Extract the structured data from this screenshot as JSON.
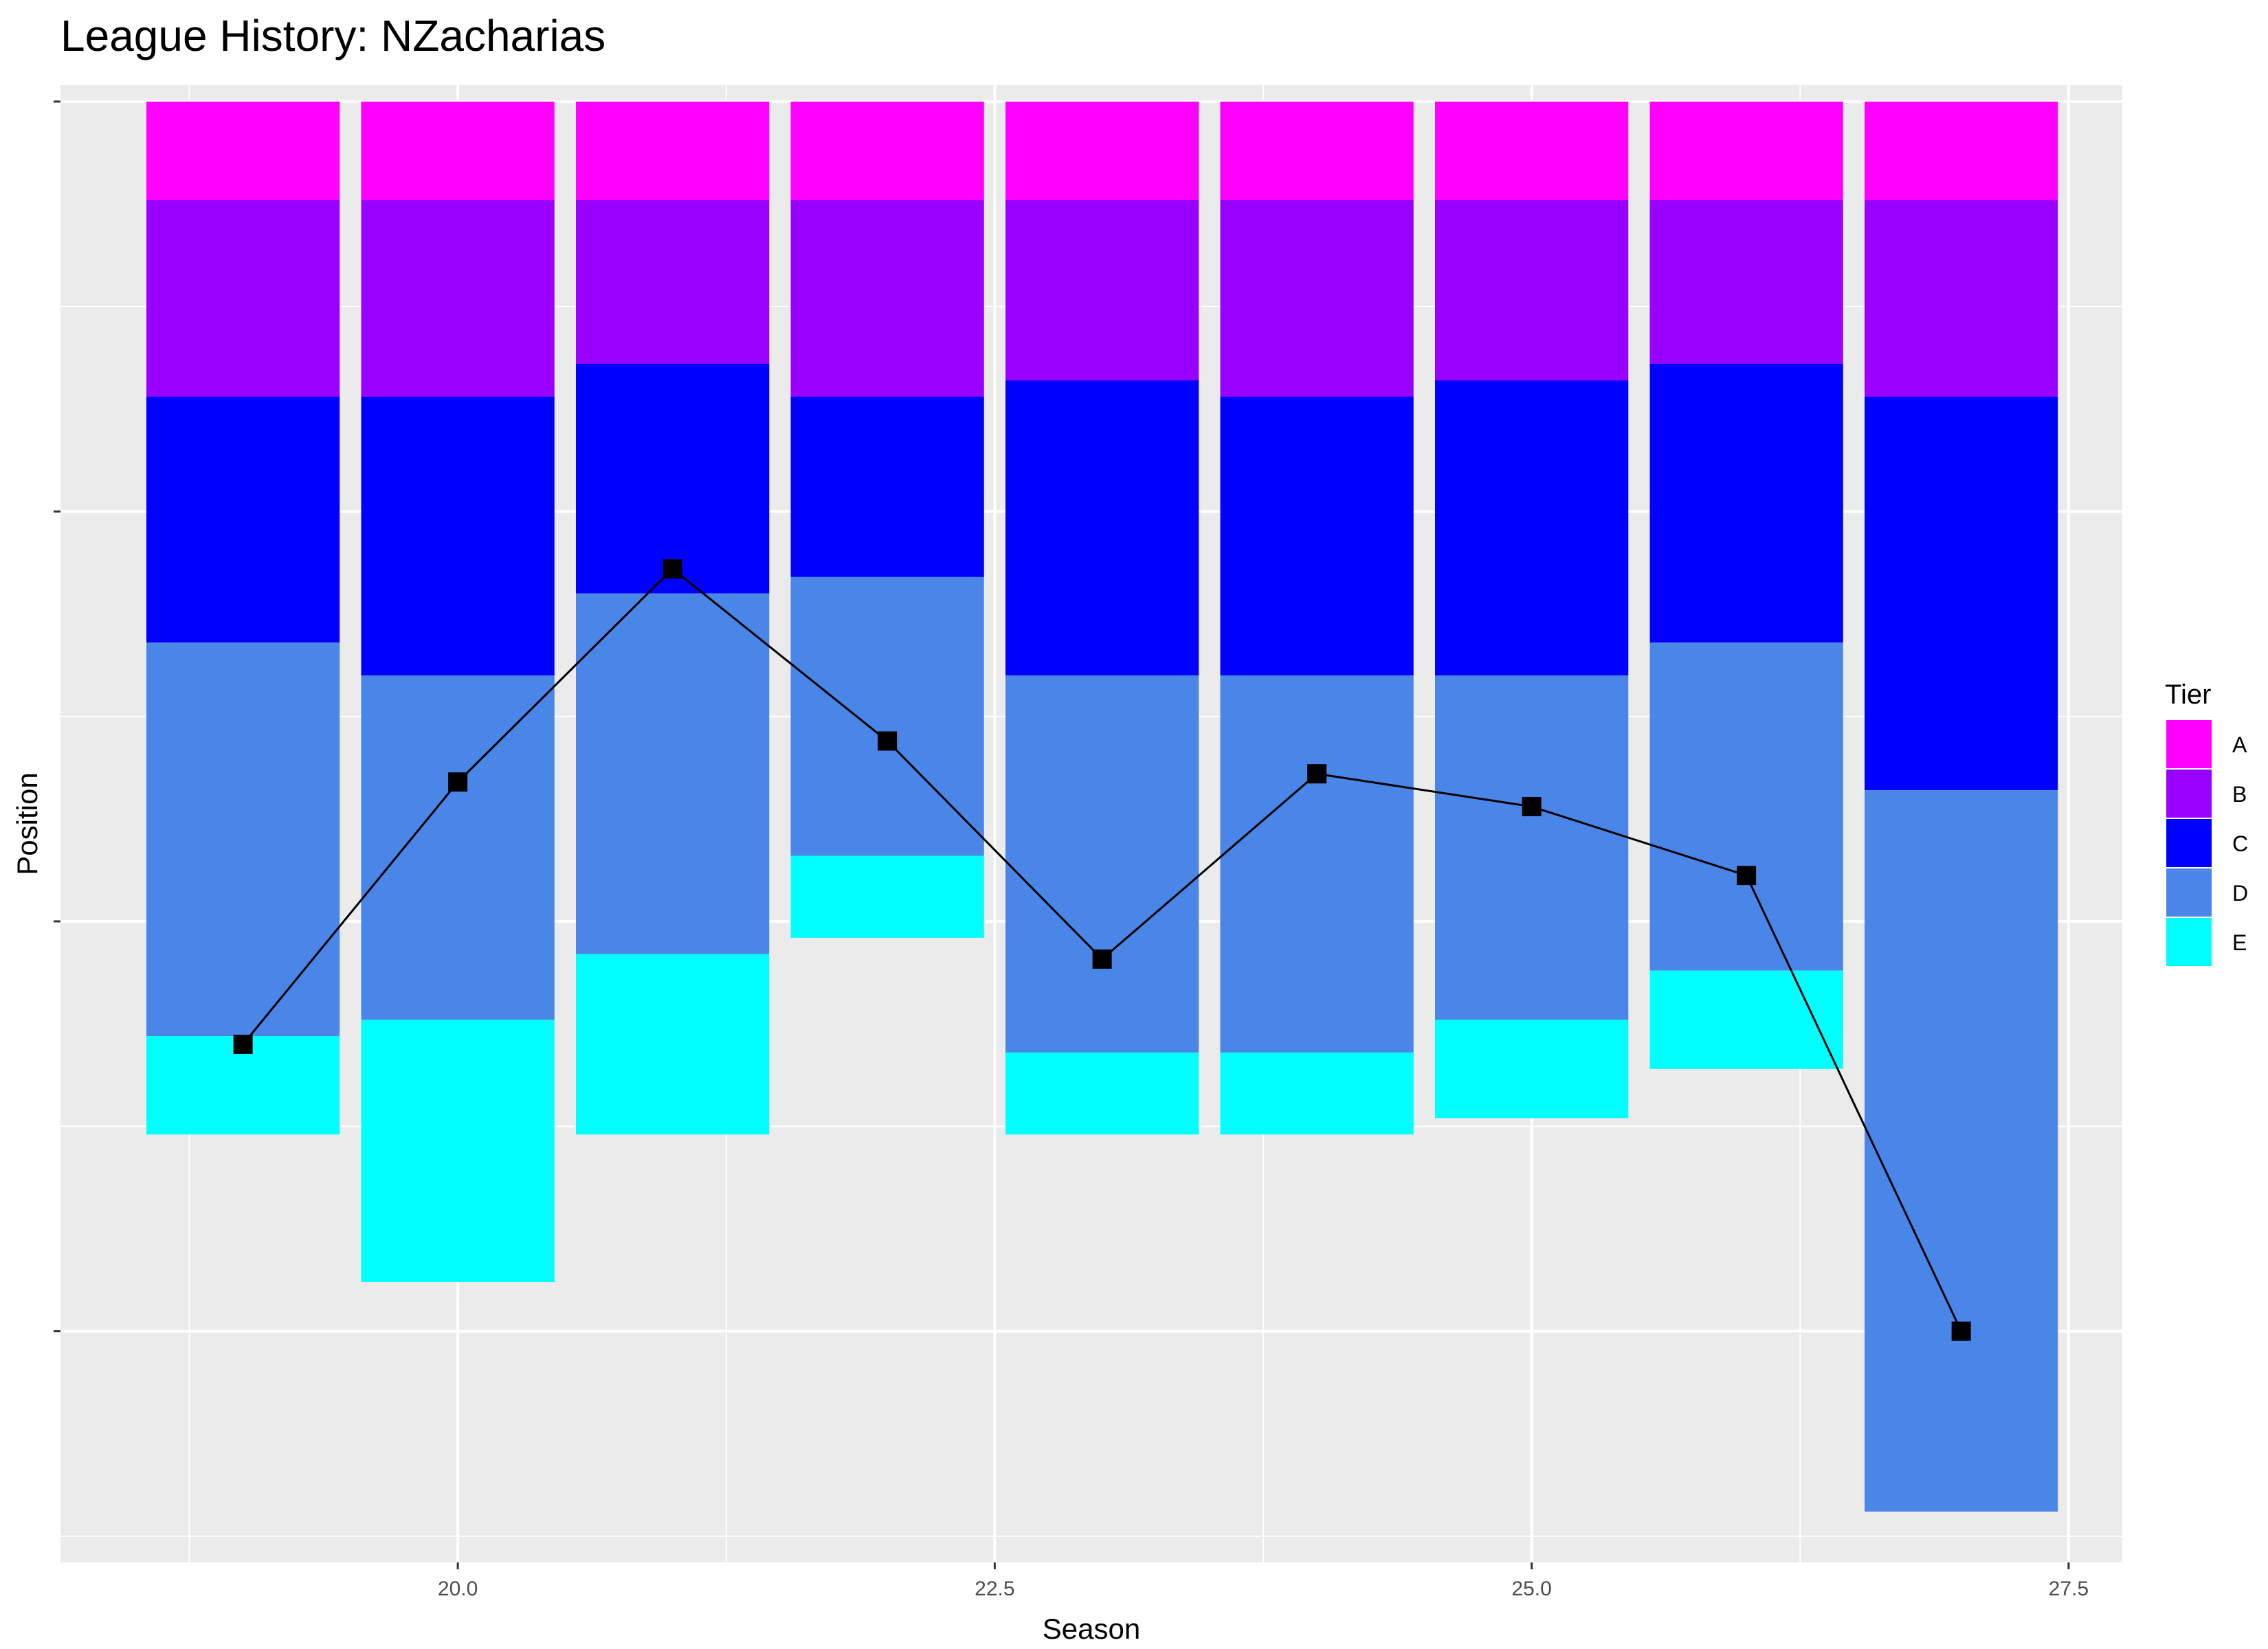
{
  "chart_data": {
    "type": "bar",
    "title": "League History: NZacharias",
    "xlabel": "Season",
    "ylabel": "Position",
    "xlim": [
      18.15,
      27.75
    ],
    "ylim": [
      -89.1,
      1.0
    ],
    "x_ticks": [
      20.0,
      22.5,
      25.0,
      27.5
    ],
    "x_tick_labels": [
      "20.0",
      "22.5",
      "25.0",
      "27.5"
    ],
    "y_ticks": [
      -50,
      -25,
      0,
      -75
    ],
    "y_ticks_show_labels": false,
    "grid": true,
    "legend": {
      "title": "Tier",
      "placement": "right",
      "entries": [
        {
          "name": "A",
          "color": "#FF00FF"
        },
        {
          "name": "B",
          "color": "#9900FF"
        },
        {
          "name": "C",
          "color": "#0000FF"
        },
        {
          "name": "D",
          "color": "#4A86E8"
        },
        {
          "name": "E",
          "color": "#00FFFF"
        }
      ]
    },
    "seasons": [
      19,
      20,
      21,
      22,
      23,
      24,
      25,
      26,
      27
    ],
    "tiers": [
      {
        "name": "A",
        "values": [
          6,
          6,
          6,
          6,
          6,
          6,
          6,
          6,
          6
        ]
      },
      {
        "name": "B",
        "values": [
          12,
          12,
          10,
          12,
          11,
          12,
          11,
          10,
          12
        ]
      },
      {
        "name": "C",
        "values": [
          15,
          17,
          14,
          11,
          18,
          17,
          18,
          17,
          24
        ]
      },
      {
        "name": "D",
        "values": [
          24,
          21,
          22,
          17,
          23,
          23,
          21,
          20,
          44
        ]
      },
      {
        "name": "E",
        "values": [
          6,
          16,
          11,
          5,
          5,
          5,
          6,
          6,
          0
        ]
      }
    ],
    "position_line": {
      "color": "#000000",
      "x": [
        19,
        20,
        21,
        22,
        23,
        24,
        25,
        26,
        27
      ],
      "y": [
        -57.5,
        -41.5,
        -28.5,
        -39,
        -52.3,
        -41,
        -43,
        -47.2,
        -75
      ]
    },
    "bar_width": 0.9,
    "panel_background": "#EBEBEB",
    "grid_color": "#FFFFFF"
  }
}
